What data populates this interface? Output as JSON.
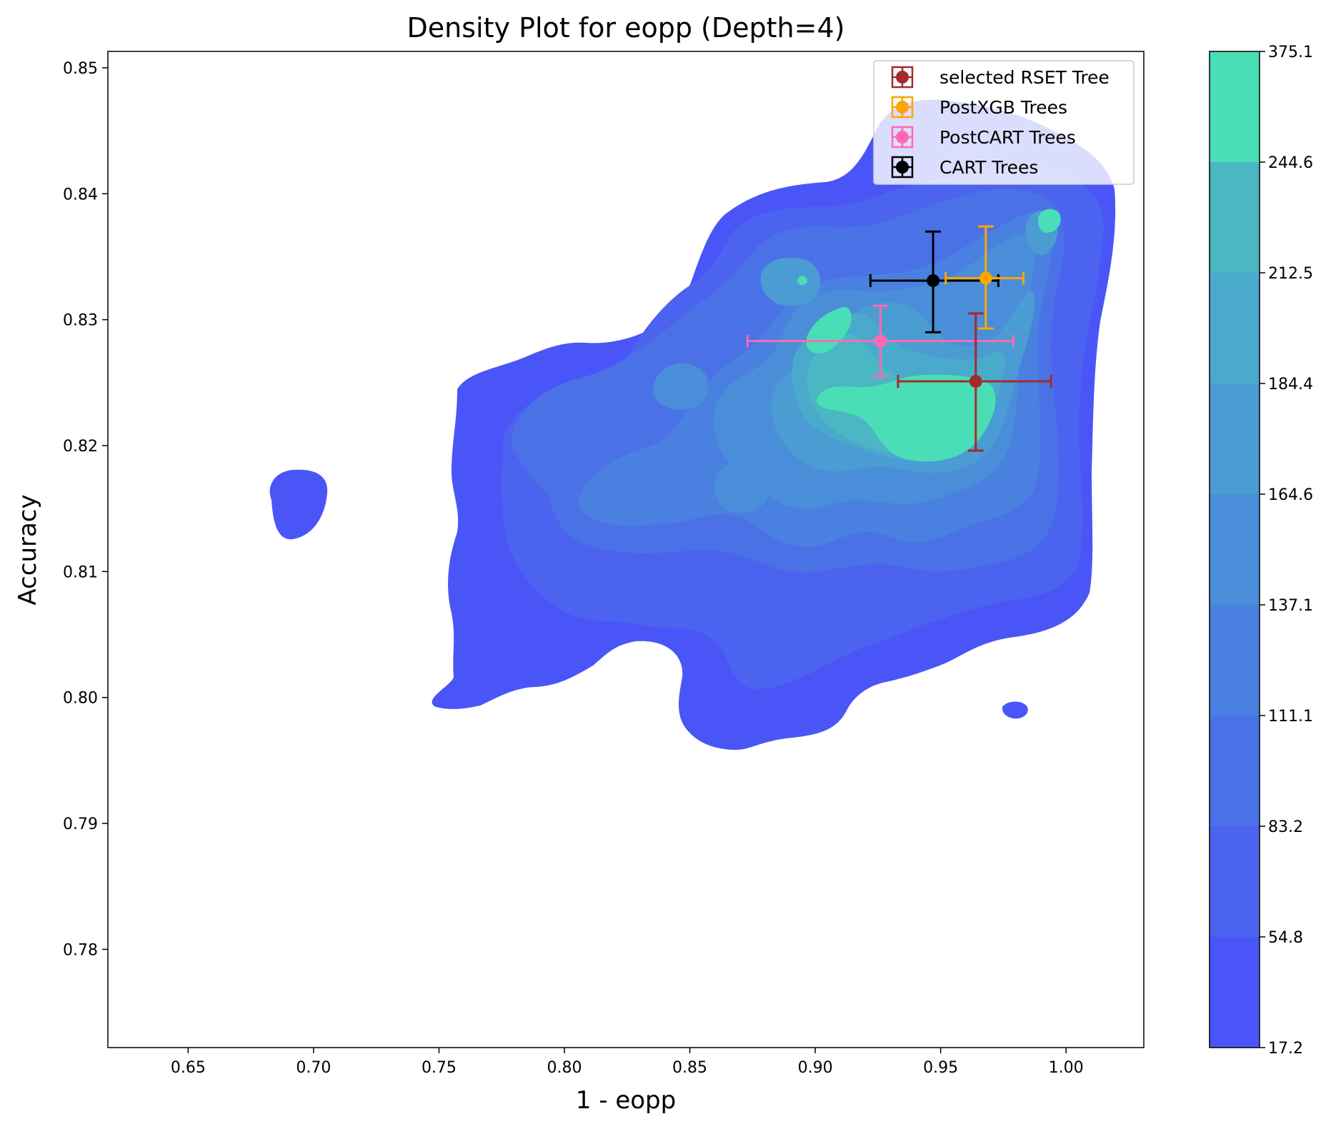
{
  "chart_data": {
    "type": "contour_density_with_errorbars",
    "title": "Density Plot for eopp (Depth=4)",
    "xlabel": "1 - eopp",
    "ylabel": "Accuracy",
    "xlim": [
      0.618,
      1.031
    ],
    "ylim": [
      0.7722,
      0.8513
    ],
    "x_ticks": [
      "0.65",
      "0.70",
      "0.75",
      "0.80",
      "0.85",
      "0.90",
      "0.95",
      "1.00"
    ],
    "x_tick_values": [
      0.65,
      0.7,
      0.75,
      0.8,
      0.85,
      0.9,
      0.95,
      1.0
    ],
    "y_ticks": [
      "0.78",
      "0.79",
      "0.80",
      "0.81",
      "0.82",
      "0.83",
      "0.84",
      "0.85"
    ],
    "y_tick_values": [
      0.78,
      0.79,
      0.8,
      0.81,
      0.82,
      0.83,
      0.84,
      0.85
    ],
    "grid": false,
    "legend_position": "top-right",
    "colorbar": {
      "levels": [
        "17.2",
        "54.8",
        "83.2",
        "111.1",
        "137.1",
        "164.6",
        "184.4",
        "212.5",
        "244.6",
        "375.1"
      ],
      "colors": [
        "#4a55f8",
        "#4b63ee",
        "#4a72e6",
        "#4a80e0",
        "#4a8ed9",
        "#4a9cd3",
        "#4aaacb",
        "#4ab7c3",
        "#4adeb6"
      ]
    },
    "series": [
      {
        "name": "selected RSET Tree",
        "color": "#a52a2a",
        "x": 0.964,
        "y": 0.8251,
        "xerr": [
          0.933,
          0.994
        ],
        "yerr": [
          0.8196,
          0.8305
        ]
      },
      {
        "name": "PostXGB Trees",
        "color": "#ffa500",
        "x": 0.968,
        "y": 0.8333,
        "xerr": [
          0.952,
          0.983
        ],
        "yerr": [
          0.8293,
          0.8374
        ]
      },
      {
        "name": "PostCART Trees",
        "color": "#ff69b4",
        "x": 0.926,
        "y": 0.8283,
        "xerr": [
          0.873,
          0.979
        ],
        "yerr": [
          0.8255,
          0.8311
        ]
      },
      {
        "name": "CART Trees",
        "color": "#000000",
        "x": 0.947,
        "y": 0.8331,
        "xerr": [
          0.922,
          0.973
        ],
        "yerr": [
          0.829,
          0.837
        ]
      }
    ]
  }
}
